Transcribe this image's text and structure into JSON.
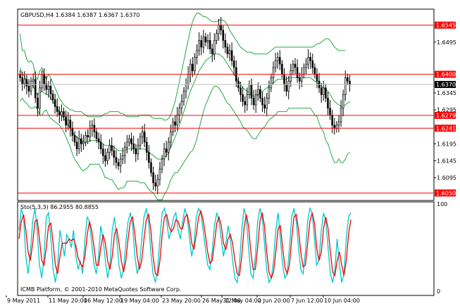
{
  "chart_data": [
    {
      "type": "candlestick",
      "header": "GBPUSD,H4 1.6384 1.6387 1.6367 1.6370",
      "y_ticks": [
        "1.6495",
        "1.6345",
        "1.6295",
        "1.6195",
        "1.6145",
        "1.6095"
      ],
      "ylim": [
        1.603,
        1.659
      ],
      "level_lines": [
        {
          "label": "1.6545",
          "value": 1.6545
        },
        {
          "label": "1.6400",
          "value": 1.64
        },
        {
          "label": "1.6279",
          "value": 1.6279
        },
        {
          "label": "1.6241",
          "value": 1.6241
        },
        {
          "label": "1.6050",
          "value": 1.605
        }
      ],
      "current_price": {
        "label": "1.6370",
        "value": 1.637
      },
      "close_series": [
        1.639,
        1.6372,
        1.6385,
        1.6365,
        1.635,
        1.638,
        1.6385,
        1.633,
        1.63,
        1.636,
        1.64,
        1.6372,
        1.6355,
        1.6365,
        1.6342,
        1.6325,
        1.6305,
        1.629,
        1.628,
        1.629,
        1.6275,
        1.625,
        1.6265,
        1.624,
        1.622,
        1.62,
        1.618,
        1.621,
        1.6195,
        1.62,
        1.622,
        1.6215,
        1.624,
        1.625,
        1.623,
        1.621,
        1.62,
        1.618,
        1.616,
        1.6145,
        1.617,
        1.619,
        1.6175,
        1.6155,
        1.614,
        1.613,
        1.615,
        1.616,
        1.6185,
        1.62,
        1.621,
        1.6195,
        1.618,
        1.6165,
        1.619,
        1.6215,
        1.623,
        1.62,
        1.617,
        1.614,
        1.611,
        1.608,
        1.607,
        1.609,
        1.612,
        1.615,
        1.618,
        1.617,
        1.62,
        1.623,
        1.626,
        1.625,
        1.628,
        1.63,
        1.632,
        1.635,
        1.637,
        1.64,
        1.643,
        1.641,
        1.645,
        1.647,
        1.65,
        1.648,
        1.651,
        1.6495,
        1.65,
        1.6475,
        1.646,
        1.65,
        1.652,
        1.6545,
        1.653,
        1.65,
        1.648,
        1.646,
        1.647,
        1.644,
        1.642,
        1.638,
        1.636,
        1.634,
        1.632,
        1.631,
        1.634,
        1.637,
        1.633,
        1.631,
        1.634,
        1.6355,
        1.633,
        1.631,
        1.63,
        1.633,
        1.636,
        1.639,
        1.642,
        1.644,
        1.645,
        1.643,
        1.64,
        1.637,
        1.635,
        1.638,
        1.641,
        1.643,
        1.642,
        1.639,
        1.638,
        1.64,
        1.642,
        1.643,
        1.645,
        1.644,
        1.642,
        1.64,
        1.638,
        1.636,
        1.634,
        1.636,
        1.633,
        1.63,
        1.628,
        1.625,
        1.624,
        1.625,
        1.626,
        1.63,
        1.634,
        1.639,
        1.638,
        1.637
      ],
      "bb_upper": [
        1.652,
        1.647,
        1.647,
        1.6445,
        1.6435,
        1.644,
        1.643,
        1.6395,
        1.6385,
        1.641,
        1.642,
        1.64,
        1.6385,
        1.64,
        1.639,
        1.6375,
        1.636,
        1.6345,
        1.633,
        1.632,
        1.631,
        1.6305,
        1.63,
        1.6295,
        1.6295,
        1.629,
        1.629,
        1.629,
        1.629,
        1.6285,
        1.628,
        1.6275,
        1.6275,
        1.6275,
        1.6275,
        1.6275,
        1.6275,
        1.6275,
        1.628,
        1.6285,
        1.6285,
        1.629,
        1.629,
        1.629,
        1.629,
        1.629,
        1.6285,
        1.6285,
        1.628,
        1.6275,
        1.6275,
        1.6275,
        1.6275,
        1.6275,
        1.6275,
        1.628,
        1.628,
        1.628,
        1.628,
        1.628,
        1.6275,
        1.627,
        1.627,
        1.627,
        1.627,
        1.627,
        1.6265,
        1.6265,
        1.627,
        1.628,
        1.63,
        1.632,
        1.635,
        1.638,
        1.641,
        1.644,
        1.647,
        1.65,
        1.653,
        1.6555,
        1.657,
        1.658,
        1.658,
        1.6575,
        1.657,
        1.657,
        1.6565,
        1.656,
        1.6555,
        1.6555,
        1.6555,
        1.656,
        1.656,
        1.656,
        1.6555,
        1.6545,
        1.653,
        1.652,
        1.651,
        1.65,
        1.649,
        1.648,
        1.6475,
        1.647,
        1.6465,
        1.6465,
        1.6465,
        1.646,
        1.646,
        1.646,
        1.646,
        1.646,
        1.646,
        1.646,
        1.6465,
        1.647,
        1.6475,
        1.648,
        1.648,
        1.648,
        1.648,
        1.648,
        1.648,
        1.648,
        1.648,
        1.648,
        1.648,
        1.648,
        1.648,
        1.648,
        1.648,
        1.648,
        1.648,
        1.648,
        1.648,
        1.6485,
        1.649,
        1.649,
        1.6495,
        1.65,
        1.6505,
        1.6505,
        1.65,
        1.649,
        1.648,
        1.6475,
        1.647,
        1.647,
        1.647,
        1.647
      ],
      "bb_middle": [
        1.642,
        1.64,
        1.6395,
        1.638,
        1.637,
        1.637,
        1.6365,
        1.635,
        1.634,
        1.6345,
        1.635,
        1.6345,
        1.634,
        1.634,
        1.633,
        1.632,
        1.631,
        1.63,
        1.629,
        1.628,
        1.627,
        1.626,
        1.625,
        1.624,
        1.623,
        1.622,
        1.6215,
        1.621,
        1.6205,
        1.62,
        1.62,
        1.62,
        1.6205,
        1.6205,
        1.6205,
        1.6205,
        1.6205,
        1.62,
        1.6195,
        1.619,
        1.619,
        1.619,
        1.619,
        1.6185,
        1.618,
        1.6175,
        1.6175,
        1.6175,
        1.6175,
        1.618,
        1.618,
        1.618,
        1.618,
        1.618,
        1.618,
        1.618,
        1.618,
        1.618,
        1.6175,
        1.617,
        1.6165,
        1.616,
        1.6155,
        1.615,
        1.615,
        1.615,
        1.6155,
        1.616,
        1.617,
        1.6185,
        1.62,
        1.6215,
        1.623,
        1.625,
        1.627,
        1.629,
        1.631,
        1.633,
        1.635,
        1.6365,
        1.638,
        1.6395,
        1.641,
        1.642,
        1.643,
        1.644,
        1.6445,
        1.645,
        1.6455,
        1.646,
        1.646,
        1.646,
        1.6455,
        1.645,
        1.644,
        1.643,
        1.642,
        1.641,
        1.64,
        1.639,
        1.638,
        1.637,
        1.636,
        1.6355,
        1.635,
        1.6345,
        1.634,
        1.6335,
        1.6335,
        1.634,
        1.6345,
        1.635,
        1.6355,
        1.636,
        1.6365,
        1.637,
        1.6375,
        1.638,
        1.6385,
        1.6385,
        1.6385,
        1.6385,
        1.6385,
        1.639,
        1.639,
        1.639,
        1.639,
        1.639,
        1.639,
        1.639,
        1.639,
        1.639,
        1.639,
        1.639,
        1.6385,
        1.638,
        1.6375,
        1.637,
        1.6365,
        1.636,
        1.6355,
        1.635,
        1.634,
        1.633,
        1.632,
        1.6315,
        1.631,
        1.6305,
        1.6305,
        1.631,
        1.6315,
        1.632
      ],
      "bb_lower": [
        1.632,
        1.633,
        1.632,
        1.6315,
        1.6305,
        1.63,
        1.63,
        1.6305,
        1.6295,
        1.628,
        1.628,
        1.629,
        1.6295,
        1.628,
        1.627,
        1.6265,
        1.626,
        1.6255,
        1.625,
        1.624,
        1.623,
        1.6215,
        1.62,
        1.6185,
        1.6165,
        1.615,
        1.614,
        1.613,
        1.612,
        1.6115,
        1.612,
        1.6125,
        1.6135,
        1.6135,
        1.6135,
        1.6135,
        1.6135,
        1.6125,
        1.611,
        1.6095,
        1.6095,
        1.609,
        1.609,
        1.608,
        1.607,
        1.606,
        1.6065,
        1.6065,
        1.607,
        1.6085,
        1.6085,
        1.6085,
        1.6085,
        1.6085,
        1.6085,
        1.608,
        1.608,
        1.608,
        1.607,
        1.606,
        1.6055,
        1.605,
        1.604,
        1.603,
        1.603,
        1.603,
        1.6045,
        1.6055,
        1.607,
        1.609,
        1.61,
        1.611,
        1.611,
        1.612,
        1.613,
        1.614,
        1.615,
        1.616,
        1.617,
        1.6175,
        1.619,
        1.621,
        1.624,
        1.6265,
        1.629,
        1.631,
        1.6325,
        1.634,
        1.6355,
        1.6365,
        1.6365,
        1.636,
        1.635,
        1.634,
        1.6325,
        1.6315,
        1.631,
        1.63,
        1.629,
        1.628,
        1.627,
        1.626,
        1.6245,
        1.624,
        1.6235,
        1.6225,
        1.6215,
        1.621,
        1.621,
        1.622,
        1.623,
        1.624,
        1.6245,
        1.6255,
        1.6265,
        1.627,
        1.6275,
        1.628,
        1.629,
        1.629,
        1.629,
        1.629,
        1.629,
        1.63,
        1.63,
        1.63,
        1.63,
        1.63,
        1.63,
        1.63,
        1.63,
        1.63,
        1.63,
        1.63,
        1.629,
        1.628,
        1.6275,
        1.6255,
        1.624,
        1.623,
        1.6205,
        1.6195,
        1.6175,
        1.6155,
        1.614,
        1.614,
        1.615,
        1.614,
        1.614,
        1.615,
        1.6165,
        1.617
      ],
      "x_ticks": [
        "9 May 2011",
        "11 May 20:00",
        "16 May 12:00",
        "19 May 04:00",
        "23 May 20:00",
        "26 May 12:00",
        "31 May 04:00",
        "2 Jun 20:00",
        "7 Jun 12:00",
        "10 Jun 04:00"
      ]
    },
    {
      "type": "line",
      "header": "Sto(5,3,3) 86.2955 80.8855",
      "ylim": [
        0,
        100
      ],
      "y_ticks": [
        "100",
        "0"
      ],
      "series": [
        {
          "name": "main",
          "color": "#00c8c8",
          "values": [
            70,
            95,
            85,
            40,
            20,
            45,
            80,
            95,
            70,
            30,
            15,
            40,
            85,
            90,
            60,
            25,
            10,
            30,
            70,
            55,
            40,
            65,
            60,
            50,
            70,
            40,
            25,
            35,
            20,
            60,
            85,
            80,
            55,
            30,
            20,
            40,
            75,
            60,
            35,
            15,
            30,
            70,
            85,
            60,
            30,
            15,
            25,
            55,
            80,
            90,
            75,
            40,
            20,
            30,
            60,
            85,
            95,
            80,
            45,
            20,
            10,
            25,
            60,
            90,
            95,
            80,
            60,
            70,
            85,
            90,
            70,
            60,
            80,
            95,
            85,
            60,
            40,
            55,
            85,
            95,
            90,
            70,
            50,
            30,
            25,
            45,
            75,
            90,
            80,
            60,
            40,
            55,
            75,
            60,
            35,
            15,
            10,
            30,
            70,
            95,
            85,
            50,
            20,
            15,
            40,
            80,
            95,
            85,
            55,
            25,
            10,
            15,
            35,
            70,
            90,
            60,
            30,
            15,
            20,
            50,
            85,
            95,
            80,
            50,
            25,
            20,
            45,
            80,
            95,
            90,
            60,
            30,
            35,
            70,
            90,
            80,
            50,
            20,
            10,
            25,
            60,
            30,
            10,
            20,
            60,
            85,
            90
          ]
        },
        {
          "name": "signal",
          "color": "#ff0000",
          "values": [
            60,
            80,
            88,
            70,
            45,
            35,
            55,
            80,
            82,
            60,
            35,
            30,
            50,
            75,
            78,
            55,
            30,
            20,
            40,
            55,
            55,
            55,
            60,
            58,
            60,
            52,
            38,
            32,
            28,
            40,
            65,
            80,
            70,
            50,
            30,
            30,
            50,
            65,
            55,
            35,
            25,
            40,
            65,
            72,
            55,
            35,
            22,
            35,
            60,
            80,
            85,
            65,
            40,
            25,
            35,
            60,
            82,
            88,
            70,
            40,
            20,
            18,
            35,
            65,
            85,
            88,
            75,
            68,
            72,
            82,
            80,
            72,
            72,
            85,
            88,
            75,
            55,
            48,
            65,
            85,
            92,
            82,
            65,
            45,
            32,
            35,
            55,
            78,
            85,
            75,
            55,
            48,
            60,
            65,
            55,
            35,
            20,
            18,
            40,
            72,
            88,
            75,
            45,
            25,
            25,
            50,
            80,
            90,
            75,
            45,
            22,
            15,
            22,
            45,
            72,
            75,
            50,
            28,
            20,
            30,
            60,
            85,
            88,
            70,
            45,
            28,
            30,
            55,
            80,
            90,
            78,
            50,
            35,
            45,
            72,
            85,
            72,
            45,
            22,
            18,
            35,
            45,
            30,
            18,
            35,
            65,
            82
          ]
        }
      ],
      "footer": "ICMB Platform, © 2001-2010 MetaQuotes Software Corp."
    }
  ],
  "colors": {
    "candle": "#000000",
    "bb": "#22aa44",
    "level": "#ff0000",
    "label_bg": "#ff0000",
    "price_bg": "#000000"
  }
}
